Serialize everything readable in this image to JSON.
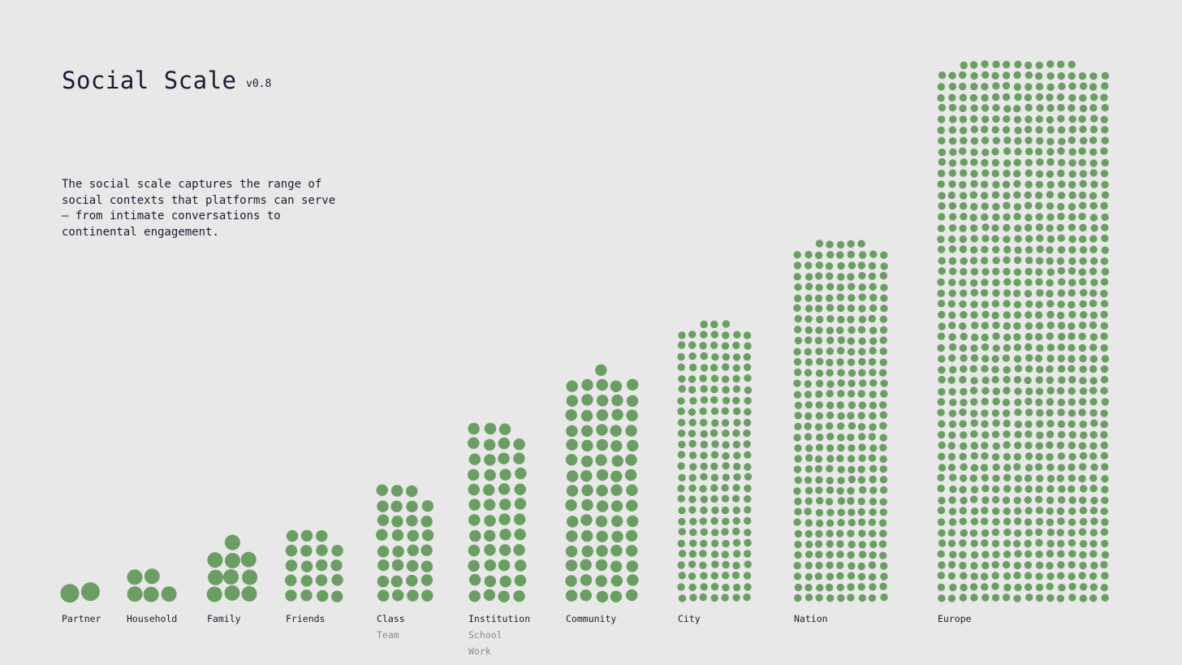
{
  "header": {
    "title": "Social Scale",
    "version": "v0.8",
    "description": "The social scale captures the range of social contexts that platforms can serve — from intimate conversations to continental engagement."
  },
  "colors": {
    "background": "#e8e8e8",
    "dot": "#6a9e62",
    "label": "#1b1b33",
    "sublabel": "#8a8a8a"
  },
  "chart_data": {
    "type": "scatter",
    "title": "Social Scale",
    "categories": [
      {
        "label": "Partner",
        "sublabels": [],
        "dots": 2
      },
      {
        "label": "Household",
        "sublabels": [],
        "dots": 5
      },
      {
        "label": "Family",
        "sublabels": [],
        "dots": 10
      },
      {
        "label": "Friends",
        "sublabels": [],
        "dots": 19
      },
      {
        "label": "Class",
        "sublabels": [
          "Team"
        ],
        "dots": 31
      },
      {
        "label": "Institution",
        "sublabels": [
          "School",
          "Work"
        ],
        "dots": 47
      },
      {
        "label": "Community",
        "sublabels": [],
        "dots": 76
      },
      {
        "label": "City",
        "sublabels": [],
        "dots": 178
      },
      {
        "label": "Nation",
        "sublabels": [],
        "dots": 302
      },
      {
        "label": "Europe",
        "sublabels": [],
        "dots": 795
      }
    ],
    "grid": false,
    "legend": "none"
  }
}
